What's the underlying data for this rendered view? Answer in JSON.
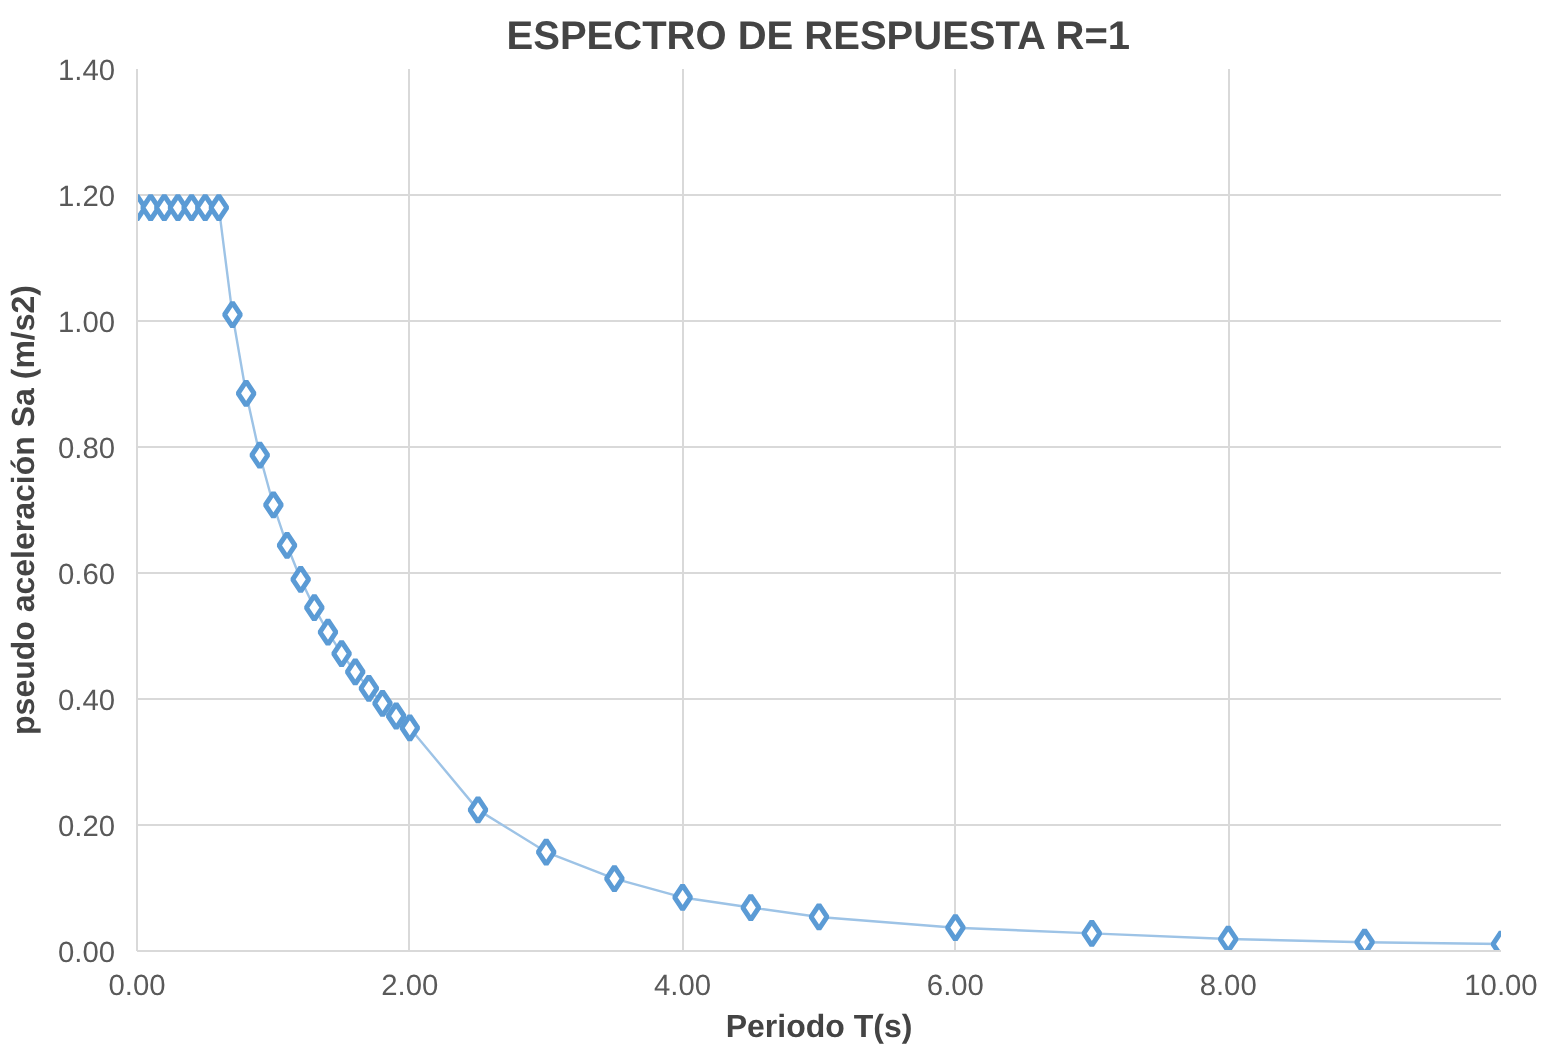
{
  "chart_data": {
    "type": "line",
    "title": "ESPECTRO DE RESPUESTA R=1",
    "xlabel": "Periodo T(s)",
    "ylabel": "pseudo aceleración Sa (m/s2)",
    "x": [
      0,
      0.1,
      0.2,
      0.3,
      0.4,
      0.5,
      0.6,
      0.7,
      0.8,
      0.9,
      1.0,
      1.1,
      1.2,
      1.3,
      1.4,
      1.5,
      1.6,
      1.7,
      1.8,
      1.9,
      2.0,
      2.5,
      3.0,
      3.5,
      4.0,
      4.5,
      5.0,
      6.0,
      7.0,
      8.0,
      9.0,
      10.0
    ],
    "series": [
      {
        "color": "#5b9bd5",
        "values": [
          1.18,
          1.18,
          1.18,
          1.18,
          1.18,
          1.18,
          1.18,
          1.01,
          0.885,
          0.787,
          0.708,
          0.644,
          0.59,
          0.545,
          0.506,
          0.472,
          0.443,
          0.417,
          0.393,
          0.373,
          0.354,
          0.224,
          0.157,
          0.115,
          0.085,
          0.069,
          0.054,
          0.037,
          0.028,
          0.019,
          0.014,
          0.011
        ]
      }
    ],
    "xlim": [
      0,
      10
    ],
    "ylim": [
      0,
      1.4
    ],
    "xticks": [
      {
        "value": 0,
        "label": "0.00"
      },
      {
        "value": 2,
        "label": "2.00"
      },
      {
        "value": 4,
        "label": "4.00"
      },
      {
        "value": 6,
        "label": "6.00"
      },
      {
        "value": 8,
        "label": "8.00"
      },
      {
        "value": 10,
        "label": "10.00"
      }
    ],
    "yticks": [
      {
        "value": 0,
        "label": "0.00"
      },
      {
        "value": 0.2,
        "label": "0.20"
      },
      {
        "value": 0.4,
        "label": "0.40"
      },
      {
        "value": 0.6,
        "label": "0.60"
      },
      {
        "value": 0.8,
        "label": "0.80"
      },
      {
        "value": 1.0,
        "label": "1.00"
      },
      {
        "value": 1.2,
        "label": "1.20"
      },
      {
        "value": 1.4,
        "label": "1.40"
      }
    ],
    "grid": true,
    "marker": "diamond",
    "line_style": "solid"
  }
}
